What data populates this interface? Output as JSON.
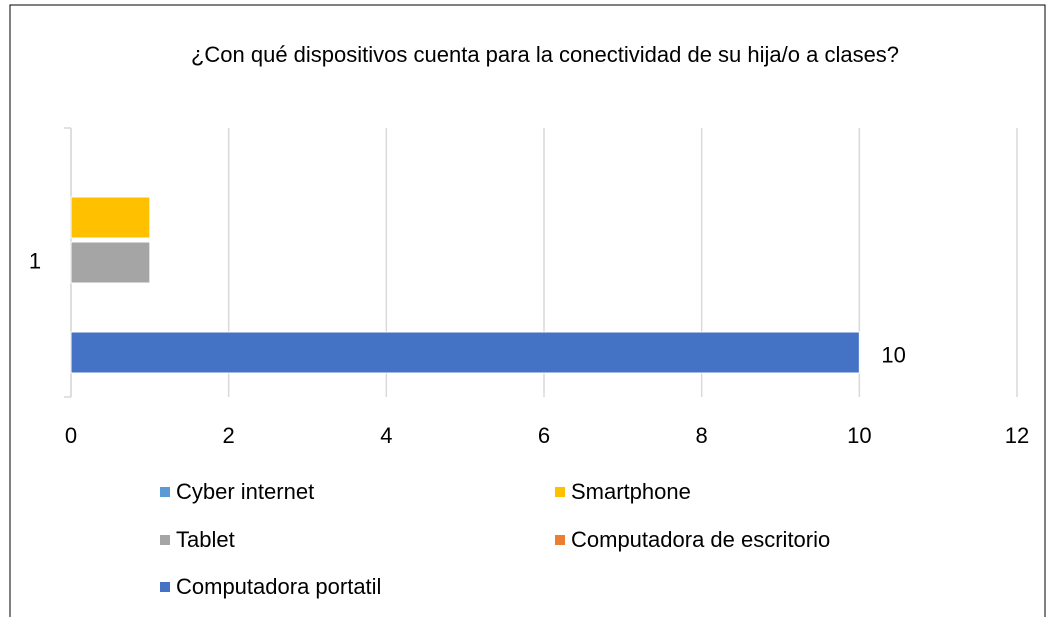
{
  "chart_data": {
    "type": "hbar",
    "title": "¿Con qué dispositivos cuenta para la conectividad de su hija/o a clases?",
    "categories": [
      "1"
    ],
    "series": [
      {
        "name": "Cyber internet",
        "color": "#5b9bd5",
        "values": [
          0
        ]
      },
      {
        "name": "Smartphone",
        "color": "#ffc000",
        "values": [
          1
        ]
      },
      {
        "name": "Tablet",
        "color": "#a5a5a5",
        "values": [
          1
        ]
      },
      {
        "name": "Computadora de escritorio",
        "color": "#ed7d31",
        "values": [
          0
        ]
      },
      {
        "name": "Computadora portatil",
        "color": "#4472c4",
        "values": [
          10
        ],
        "data_labels": true
      }
    ],
    "xlim": [
      0,
      12
    ],
    "xticks": [
      0,
      2,
      4,
      6,
      8,
      10,
      12
    ],
    "grid": true,
    "legend": "bottom"
  }
}
